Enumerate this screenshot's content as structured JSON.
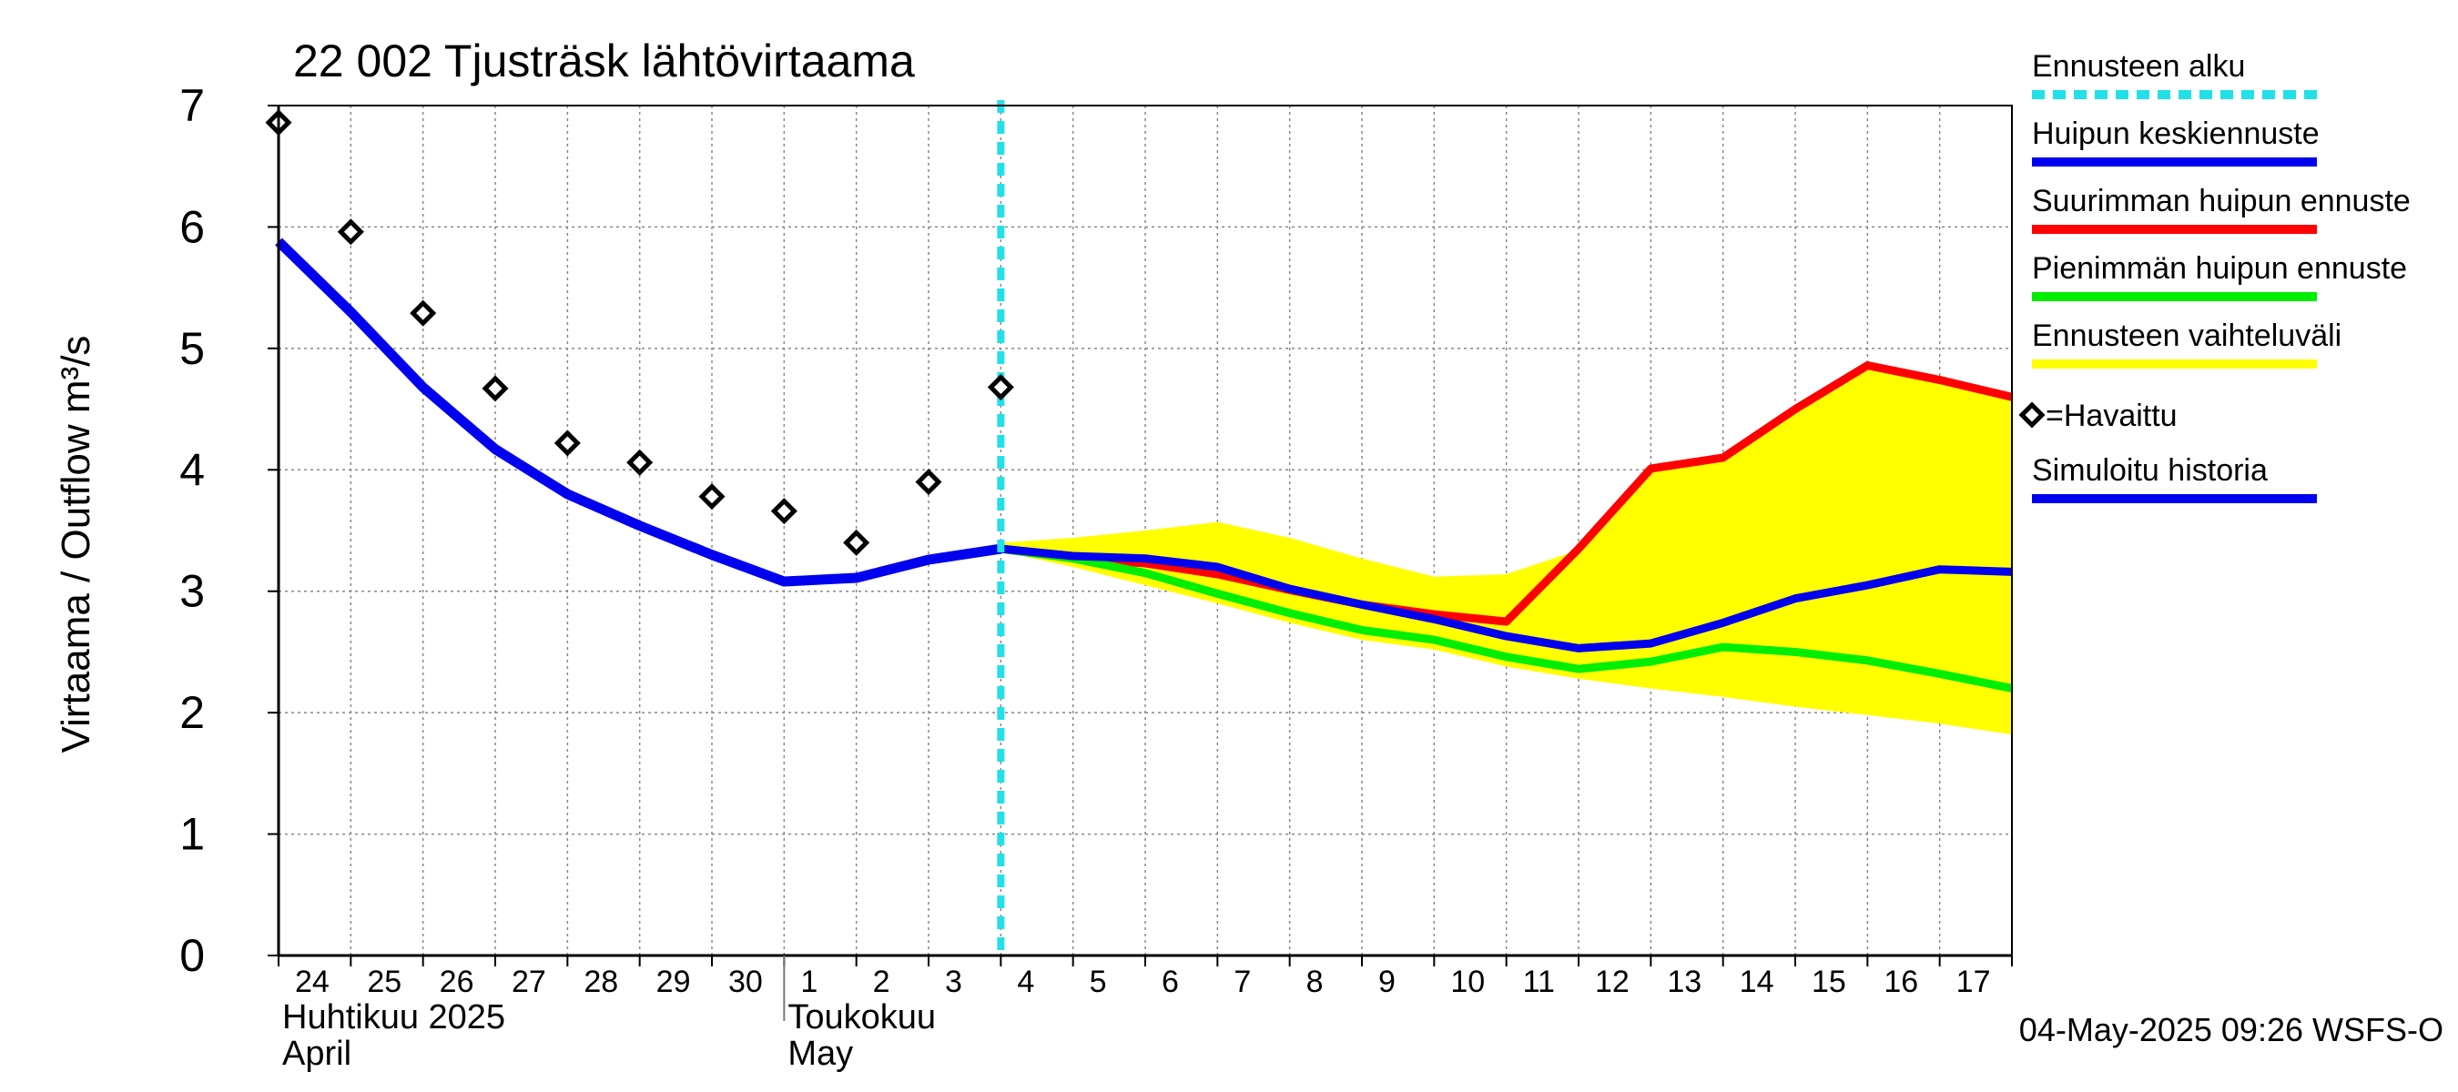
{
  "chart_data": {
    "type": "line",
    "title": "22 002 Tjusträsk lähtövirtaama",
    "ylabel": "Virtaama / Outflow    m³/s",
    "ylim": [
      0,
      7
    ],
    "y_ticks": [
      "0",
      "1",
      "2",
      "3",
      "4",
      "5",
      "6",
      "7"
    ],
    "x_start": "2025-04-24",
    "x_end": "2025-05-18",
    "x_tick_labels": [
      "24",
      "25",
      "26",
      "27",
      "28",
      "29",
      "30",
      "1",
      "2",
      "3",
      "4",
      "5",
      "6",
      "7",
      "8",
      "9",
      "10",
      "11",
      "12",
      "13",
      "14",
      "15",
      "16",
      "17"
    ],
    "month_labels": [
      {
        "finnish": "Huhtikuu  2025",
        "english": "April"
      },
      {
        "finnish": "Toukokuu",
        "english": "May"
      }
    ],
    "forecast_start": "2025-05-04",
    "colors": {
      "forecast_start": "#22e0e8",
      "mean": "#0000ee",
      "max": "#ff0000",
      "min": "#00ee00",
      "range": "#ffff00",
      "history": "#0000ee",
      "observed": "#000000"
    },
    "legend": {
      "placement": "right",
      "items": [
        {
          "label": "Ennusteen alku",
          "key": "forecast_start",
          "style": "dashed"
        },
        {
          "label": "Huipun keskiennuste",
          "key": "mean",
          "style": "line"
        },
        {
          "label": "Suurimman huipun ennuste",
          "key": "max",
          "style": "line"
        },
        {
          "label": "Pienimmän huipun ennuste",
          "key": "min",
          "style": "line"
        },
        {
          "label": "Ennusteen vaihteluväli",
          "key": "range",
          "style": "line"
        },
        {
          "label": "=Havaittu",
          "key": "observed",
          "style": "marker"
        },
        {
          "label": "Simuloitu historia",
          "key": "history",
          "style": "line"
        }
      ]
    },
    "series": [
      {
        "name": "Simuloitu historia",
        "key": "history",
        "type": "line",
        "x": [
          "2025-04-24",
          "2025-04-25",
          "2025-04-26",
          "2025-04-27",
          "2025-04-28",
          "2025-04-29",
          "2025-04-30",
          "2025-05-01",
          "2025-05-02",
          "2025-05-03",
          "2025-05-04"
        ],
        "y": [
          5.88,
          5.3,
          4.68,
          4.17,
          3.8,
          3.54,
          3.3,
          3.08,
          3.11,
          3.26,
          3.35
        ]
      },
      {
        "name": "=Havaittu",
        "key": "observed",
        "type": "marker",
        "x": [
          "2025-04-24",
          "2025-04-25",
          "2025-04-26",
          "2025-04-27",
          "2025-04-28",
          "2025-04-29",
          "2025-04-30",
          "2025-05-01",
          "2025-05-02",
          "2025-05-03",
          "2025-05-04"
        ],
        "y": [
          6.86,
          5.96,
          5.29,
          4.67,
          4.22,
          4.06,
          3.78,
          3.66,
          3.4,
          3.9,
          4.68
        ]
      },
      {
        "name": "Ennusteen vaihteluväli",
        "key": "range",
        "type": "band",
        "x": [
          "2025-05-04",
          "2025-05-05",
          "2025-05-06",
          "2025-05-07",
          "2025-05-08",
          "2025-05-09",
          "2025-05-10",
          "2025-05-11",
          "2025-05-12",
          "2025-05-13",
          "2025-05-14",
          "2025-05-15",
          "2025-05-16",
          "2025-05-17",
          "2025-05-18"
        ],
        "upper": [
          3.4,
          3.44,
          3.5,
          3.57,
          3.44,
          3.27,
          3.12,
          3.14,
          3.34,
          4.01,
          4.1,
          4.5,
          4.86,
          4.74,
          4.6
        ],
        "lower": [
          3.33,
          3.2,
          3.05,
          2.9,
          2.74,
          2.6,
          2.52,
          2.38,
          2.28,
          2.2,
          2.13,
          2.05,
          1.98,
          1.91,
          1.82
        ]
      },
      {
        "name": "Suurimman huipun ennuste",
        "key": "max",
        "type": "line",
        "x": [
          "2025-05-04",
          "2025-05-05",
          "2025-05-06",
          "2025-05-07",
          "2025-05-08",
          "2025-05-09",
          "2025-05-10",
          "2025-05-11",
          "2025-05-12",
          "2025-05-13",
          "2025-05-14",
          "2025-05-15",
          "2025-05-16",
          "2025-05-17",
          "2025-05-18"
        ],
        "y": [
          3.35,
          3.27,
          3.23,
          3.14,
          3.01,
          2.89,
          2.81,
          2.75,
          3.35,
          4.01,
          4.1,
          4.5,
          4.86,
          4.74,
          4.6
        ]
      },
      {
        "name": "Pienimmän huipun ennuste",
        "key": "min",
        "type": "line",
        "x": [
          "2025-05-04",
          "2025-05-05",
          "2025-05-06",
          "2025-05-07",
          "2025-05-08",
          "2025-05-09",
          "2025-05-10",
          "2025-05-11",
          "2025-05-12",
          "2025-05-13",
          "2025-05-14",
          "2025-05-15",
          "2025-05-16",
          "2025-05-17",
          "2025-05-18"
        ],
        "y": [
          3.35,
          3.27,
          3.15,
          2.98,
          2.82,
          2.68,
          2.6,
          2.46,
          2.36,
          2.42,
          2.54,
          2.5,
          2.43,
          2.32,
          2.2
        ]
      },
      {
        "name": "Huipun keskiennuste",
        "key": "mean",
        "type": "line",
        "x": [
          "2025-05-04",
          "2025-05-05",
          "2025-05-06",
          "2025-05-07",
          "2025-05-08",
          "2025-05-09",
          "2025-05-10",
          "2025-05-11",
          "2025-05-12",
          "2025-05-13",
          "2025-05-14",
          "2025-05-15",
          "2025-05-16",
          "2025-05-17",
          "2025-05-18"
        ],
        "y": [
          3.35,
          3.29,
          3.27,
          3.2,
          3.02,
          2.89,
          2.77,
          2.63,
          2.53,
          2.57,
          2.74,
          2.94,
          3.05,
          3.18,
          3.16
        ]
      }
    ],
    "footer": "04-May-2025 09:26 WSFS-O",
    "grid": true
  }
}
